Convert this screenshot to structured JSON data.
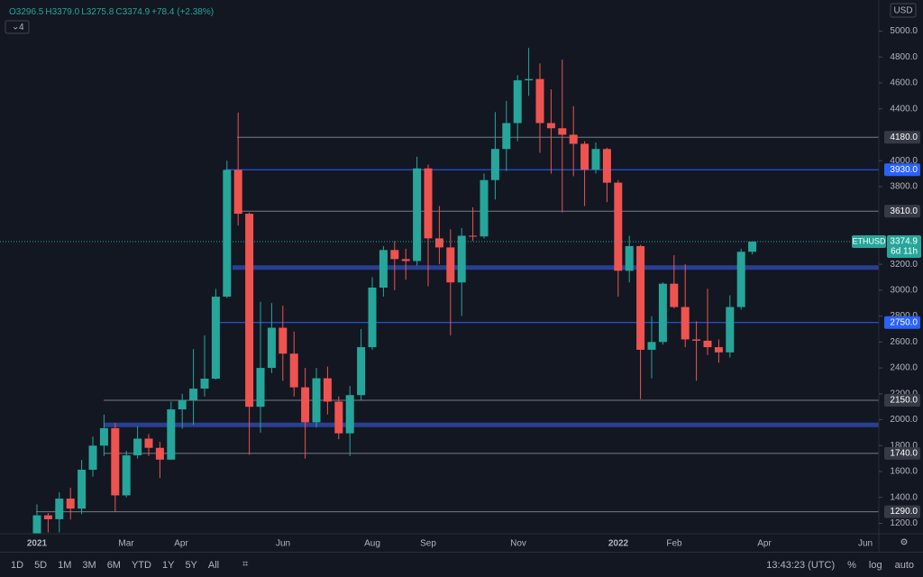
{
  "chart_data": {
    "type": "candlestick",
    "symbol": "ETHUSD",
    "currency": "USD",
    "indicators": "4",
    "legend": [
      "O3296.5",
      "H3379.0",
      "L3275.8",
      "C3374.9",
      "+78.4 (+2.38%)"
    ],
    "up_color": "#26a69a",
    "down_color": "#ef5350",
    "open": [
      1041,
      1262,
      1232,
      1391,
      1314,
      1614,
      1800,
      1935,
      1416,
      1725,
      1854,
      1783,
      1692,
      2080,
      2150,
      2240,
      2317,
      2950,
      3928,
      3590,
      2100,
      2400,
      2710,
      2510,
      2250,
      1980,
      2320,
      2140,
      1895,
      2190,
      2560,
      3020,
      3310,
      3240,
      3225,
      3940,
      3400,
      3330,
      3060,
      3420,
      3415,
      3850,
      4090,
      4290,
      4620,
      4630,
      4290,
      4250,
      4200,
      4130,
      3930,
      4090,
      3830,
      3150,
      3340,
      2540,
      2600,
      3050,
      2870,
      2620,
      2610,
      2560,
      2520,
      2870,
      3296.5
    ],
    "high": [
      1347,
      1280,
      1440,
      1475,
      1690,
      1870,
      2040,
      1975,
      1760,
      1950,
      1890,
      1830,
      2140,
      2200,
      2545,
      2650,
      3010,
      4000,
      4372,
      3600,
      2910,
      2900,
      2880,
      2680,
      2400,
      2400,
      2410,
      2180,
      2260,
      2700,
      3100,
      3340,
      3380,
      3320,
      4030,
      3970,
      3650,
      3470,
      3480,
      3640,
      3900,
      4375,
      4460,
      4660,
      4870,
      4750,
      4550,
      4780,
      4420,
      4150,
      4140,
      4100,
      3850,
      3420,
      3350,
      2800,
      3060,
      3270,
      3200,
      2760,
      3010,
      2620,
      2960,
      3320,
      3379.0
    ],
    "low": [
      895,
      1130,
      1130,
      1230,
      1270,
      1560,
      1720,
      1290,
      1400,
      1700,
      1720,
      1550,
      1690,
      1930,
      1960,
      2180,
      2310,
      2940,
      3500,
      1730,
      1900,
      2360,
      2300,
      2180,
      1700,
      1940,
      2040,
      1850,
      1720,
      2150,
      2540,
      2950,
      3000,
      3080,
      3190,
      3030,
      3200,
      2650,
      2800,
      3380,
      3400,
      3700,
      3920,
      4150,
      4500,
      4060,
      3900,
      3600,
      3880,
      3650,
      3900,
      3680,
      2950,
      3060,
      2160,
      2320,
      2580,
      2860,
      2560,
      2300,
      2500,
      2440,
      2480,
      2850,
      3275.8
    ],
    "close": [
      1262,
      1232,
      1391,
      1314,
      1614,
      1800,
      1935,
      1416,
      1725,
      1854,
      1783,
      1692,
      2080,
      2150,
      2240,
      2317,
      2950,
      3928,
      3590,
      2100,
      2400,
      2710,
      2510,
      2250,
      1980,
      2320,
      2140,
      1895,
      2190,
      2560,
      3020,
      3310,
      3240,
      3225,
      3940,
      3400,
      3330,
      3060,
      3420,
      3415,
      3850,
      4090,
      4290,
      4620,
      4630,
      4290,
      4250,
      4200,
      4130,
      3930,
      4090,
      3830,
      3150,
      3340,
      2540,
      2600,
      3050,
      2870,
      2620,
      2610,
      2560,
      2520,
      2870,
      3296.5,
      3374.9
    ],
    "last_price": {
      "value": 3374.9,
      "label": "3374.9",
      "countdown": "6d 11h"
    },
    "levels": [
      {
        "value": 4180,
        "label": "4180.0",
        "color": "#787b86"
      },
      {
        "value": 3930,
        "label": "3930.0",
        "color": "#2962ff"
      },
      {
        "value": 3610,
        "label": "3610.0",
        "color": "#787b86"
      },
      {
        "value": 2750,
        "label": "2750.0",
        "color": "#2962ff"
      },
      {
        "value": 2150,
        "label": "2150.0",
        "color": "#787b86"
      },
      {
        "value": 1740,
        "label": "1740.0",
        "color": "#787b86"
      },
      {
        "value": 1290,
        "label": "1290.0",
        "color": "#787b86"
      }
    ],
    "zones": [
      {
        "value": 3175,
        "color": "#2a3f8f"
      },
      {
        "value": 1960,
        "color": "#2a3f8f"
      }
    ],
    "ylim": [
      1120,
      5240
    ],
    "yticks": [
      {
        "value": 5000,
        "label": "5000.0"
      },
      {
        "value": 4800,
        "label": "4800.0"
      },
      {
        "value": 4600,
        "label": "4600.0"
      },
      {
        "value": 4400,
        "label": "4400.0"
      },
      {
        "value": 4000,
        "label": "4000.0"
      },
      {
        "value": 3800,
        "label": "3800.0"
      },
      {
        "value": 3200,
        "label": "3200.0"
      },
      {
        "value": 3000,
        "label": "3000.0"
      },
      {
        "value": 2800,
        "label": "2800.0"
      },
      {
        "value": 2600,
        "label": "2600.0"
      },
      {
        "value": 2400,
        "label": "2400.0"
      },
      {
        "value": 2200,
        "label": "2200.0"
      },
      {
        "value": 2000,
        "label": "2000.0"
      },
      {
        "value": 1800,
        "label": "1800.0"
      },
      {
        "value": 1600,
        "label": "1600.0"
      },
      {
        "value": 1400,
        "label": "1400.0"
      },
      {
        "value": 1200,
        "label": "1200.0"
      }
    ],
    "x_labels": [
      "2021",
      "Mar",
      "Apr",
      "Jun",
      "Aug",
      "Sep",
      "Nov",
      "2022",
      "Feb",
      "Apr",
      "Jun"
    ]
  },
  "toolbar": {
    "ranges": [
      "1D",
      "5D",
      "1M",
      "3M",
      "6M",
      "YTD",
      "1Y",
      "5Y",
      "All"
    ],
    "clock": "13:43:23 (UTC)",
    "options": [
      "%",
      "log",
      "auto"
    ]
  }
}
